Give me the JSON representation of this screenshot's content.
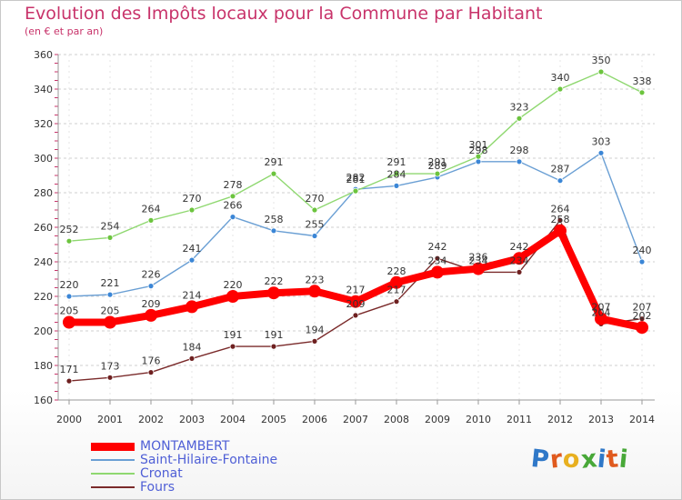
{
  "header": {
    "title": "Evolution des Impôts locaux pour la Commune par Habitant",
    "subtitle": "(en € et par an)"
  },
  "brand": {
    "text": "Proxiti",
    "letter_colors": [
      "#2f78c8",
      "#e05a1e",
      "#e8b020",
      "#48a838",
      "#2f78c8",
      "#e05a1e",
      "#48a838"
    ]
  },
  "chart_data": {
    "type": "line",
    "title": "Evolution des Impôts locaux pour la Commune par Habitant",
    "subtitle": "(en € et par an)",
    "xlabel": "",
    "ylabel": "",
    "x": [
      "2000",
      "2001",
      "2002",
      "2003",
      "2004",
      "2005",
      "2006",
      "2007",
      "2008",
      "2009",
      "2010",
      "2011",
      "2012",
      "2013",
      "2014"
    ],
    "ylim": [
      160,
      360
    ],
    "yticks": [
      160,
      180,
      200,
      220,
      240,
      260,
      280,
      300,
      320,
      340,
      360
    ],
    "grid": "horizontal dashed",
    "legend_position": "bottom-left",
    "series": [
      {
        "name": "MONTAMBERT",
        "color": "#ff0000",
        "marker_color": "#ff0000",
        "emphasis": true,
        "values": [
          205,
          205,
          209,
          214,
          220,
          222,
          223,
          217,
          228,
          234,
          236,
          242,
          258,
          207,
          202
        ],
        "labels": [
          "205",
          "205",
          "209",
          "214",
          "220",
          "222",
          "223",
          "217",
          "228",
          "234",
          "236",
          "242",
          "258",
          "207",
          "202"
        ]
      },
      {
        "name": "Saint-Hilaire-Fontaine",
        "color": "#6a9fd4",
        "marker_color": "#3b86d6",
        "emphasis": false,
        "values": [
          220,
          221,
          226,
          241,
          266,
          258,
          255,
          282,
          284,
          289,
          298,
          298,
          287,
          303,
          240
        ],
        "labels": [
          "220",
          "221",
          "226",
          "241",
          "266",
          "258",
          "255",
          "282",
          "284",
          "289",
          "298",
          "298",
          "287",
          "303",
          "240"
        ]
      },
      {
        "name": "Cronat",
        "color": "#8fd870",
        "marker_color": "#6cc43e",
        "emphasis": false,
        "values": [
          252,
          254,
          264,
          270,
          278,
          291,
          270,
          281,
          291,
          291,
          301,
          323,
          340,
          350,
          338
        ],
        "labels": [
          "252",
          "254",
          "264",
          "270",
          "278",
          "291",
          "270",
          "281",
          "291",
          "291",
          "301",
          "323",
          "340",
          "350",
          "338"
        ]
      },
      {
        "name": "Fours",
        "color": "#7a2a2a",
        "marker_color": "#6e2020",
        "emphasis": false,
        "values": [
          171,
          173,
          176,
          184,
          191,
          191,
          194,
          209,
          217,
          242,
          234,
          234,
          264,
          204,
          207
        ],
        "labels": [
          "171",
          "173",
          "176",
          "184",
          "191",
          "191",
          "194",
          "209",
          "217",
          "242",
          "234",
          "234",
          "264",
          "204",
          "207"
        ]
      }
    ]
  }
}
